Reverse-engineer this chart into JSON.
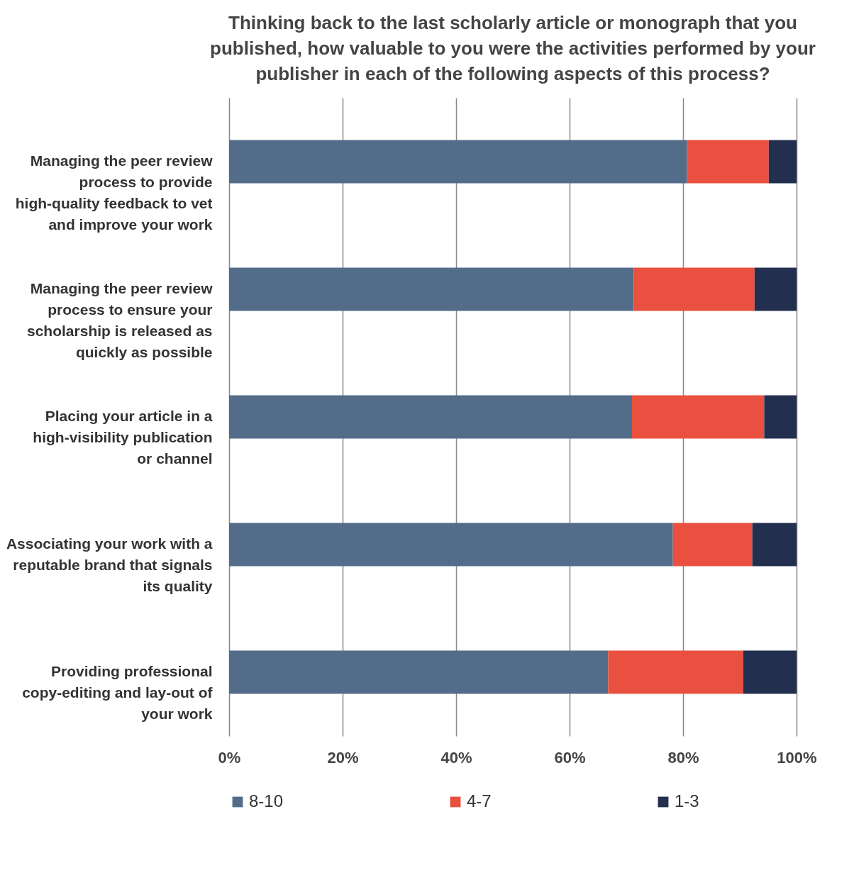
{
  "chart_data": {
    "type": "bar",
    "orientation": "horizontal",
    "stacked": true,
    "title": "Thinking back to the last scholarly article or monograph that you published, how valuable to you were the activities performed by your publisher in each of the following aspects of this process?",
    "categories": [
      "Managing the peer review process to provide high-quality feedback to vet and improve your work",
      "Managing the peer review process to ensure your scholarship is released as quickly as possible",
      "Placing your article in a high-visibility publication or channel",
      "Associating your work with a reputable brand that signals its quality",
      "Providing professional copy-editing and lay-out of your work"
    ],
    "series": [
      {
        "name": "8-10",
        "color": "#536c89",
        "values": [
          80.7,
          71.3,
          71.0,
          78.2,
          66.8
        ]
      },
      {
        "name": "4-7",
        "color": "#e9503f",
        "values": [
          14.4,
          21.3,
          23.3,
          14.0,
          23.8
        ]
      },
      {
        "name": "1-3",
        "color": "#232f4f",
        "values": [
          4.9,
          7.4,
          5.7,
          7.8,
          9.4
        ]
      }
    ],
    "xlim": [
      0,
      100
    ],
    "xticks": [
      {
        "value": 0,
        "label": "0%"
      },
      {
        "value": 20,
        "label": "20%"
      },
      {
        "value": 40,
        "label": "40%"
      },
      {
        "value": 60,
        "label": "60%"
      },
      {
        "value": 80,
        "label": "80%"
      },
      {
        "value": 100,
        "label": "100%"
      }
    ],
    "grid": "x",
    "legend": "bottom"
  }
}
